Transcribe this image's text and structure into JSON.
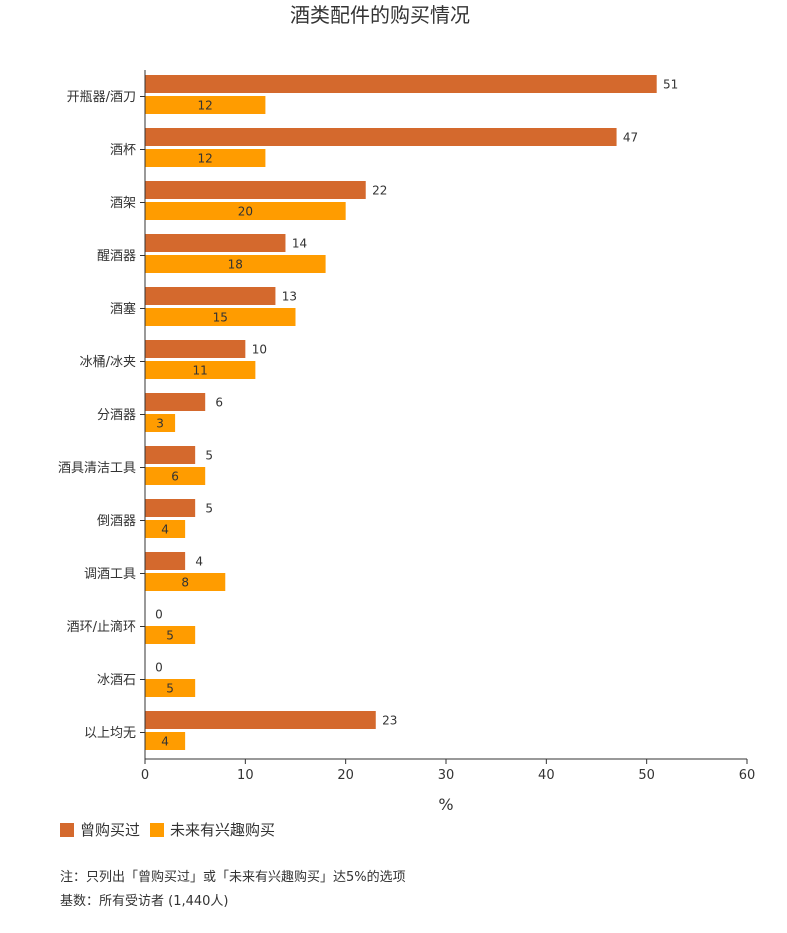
{
  "chart_data": {
    "type": "bar",
    "orientation": "horizontal",
    "title": "酒类配件的购买情况",
    "xlabel": "%",
    "ylabel": "",
    "xlim": [
      0,
      60
    ],
    "xticks": [
      0,
      10,
      20,
      30,
      40,
      50,
      60
    ],
    "categories": [
      "开瓶器/酒刀",
      "酒杯",
      "酒架",
      "醒酒器",
      "酒塞",
      "冰桶/冰夹",
      "分酒器",
      "酒具清洁工具",
      "倒酒器",
      "调酒工具",
      "酒环/止滴环",
      "冰酒石",
      "以上均无"
    ],
    "series": [
      {
        "name": "曾购买过",
        "color": "#d4692d",
        "label_position": "outside",
        "values": [
          51,
          47,
          22,
          14,
          13,
          10,
          6,
          5,
          5,
          4,
          0,
          0,
          23
        ]
      },
      {
        "name": "未来有兴趣购买",
        "color": "#ff9c00",
        "label_position": "inside",
        "values": [
          12,
          12,
          20,
          18,
          15,
          11,
          3,
          6,
          4,
          8,
          5,
          5,
          4
        ]
      }
    ],
    "grid": false,
    "legend_position": "bottom-left"
  },
  "notes": [
    "注：只列出「曾购买过」或「未来有兴趣购买」达5%的选项",
    "基数：所有受访者 (1,440人)"
  ]
}
